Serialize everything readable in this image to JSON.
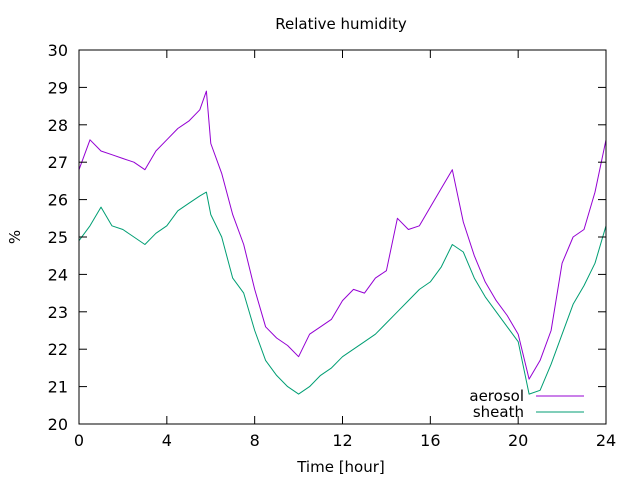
{
  "chart_data": {
    "type": "line",
    "title": "Relative humidity",
    "xlabel": "Time [hour]",
    "ylabel": "%",
    "xlim": [
      0,
      24
    ],
    "ylim": [
      20,
      30
    ],
    "xticks": [
      0,
      4,
      8,
      12,
      16,
      20,
      24
    ],
    "yticks": [
      20,
      21,
      22,
      23,
      24,
      25,
      26,
      27,
      28,
      29,
      30
    ],
    "grid": false,
    "legend_position": "bottom-right",
    "series": [
      {
        "name": "aerosol",
        "color": "#9400d3",
        "x": [
          0,
          0.5,
          1,
          1.5,
          2,
          2.5,
          3,
          3.5,
          4,
          4.5,
          5,
          5.5,
          5.8,
          6,
          6.5,
          7,
          7.5,
          8,
          8.5,
          9,
          9.5,
          10,
          10.5,
          11,
          11.5,
          12,
          12.5,
          13,
          13.5,
          14,
          14.5,
          15,
          15.5,
          16,
          16.5,
          17,
          17.5,
          18,
          18.5,
          19,
          19.5,
          20,
          20.5,
          21,
          21.5,
          22,
          22.5,
          23,
          23.5,
          24
        ],
        "y": [
          26.8,
          27.6,
          27.3,
          27.2,
          27.1,
          27.0,
          26.8,
          27.3,
          27.6,
          27.9,
          28.1,
          28.4,
          28.9,
          27.5,
          26.7,
          25.6,
          24.8,
          23.6,
          22.6,
          22.3,
          22.1,
          21.8,
          22.4,
          22.6,
          22.8,
          23.3,
          23.6,
          23.5,
          23.9,
          24.1,
          25.5,
          25.2,
          25.3,
          25.8,
          26.3,
          26.8,
          25.4,
          24.5,
          23.8,
          23.3,
          22.9,
          22.4,
          21.2,
          21.7,
          22.5,
          24.3,
          25.0,
          25.2,
          26.2,
          27.6
        ]
      },
      {
        "name": "sheath",
        "color": "#009e73",
        "x": [
          0,
          0.5,
          1,
          1.5,
          2,
          2.5,
          3,
          3.5,
          4,
          4.5,
          5,
          5.5,
          5.8,
          6,
          6.5,
          7,
          7.5,
          8,
          8.5,
          9,
          9.5,
          10,
          10.5,
          11,
          11.5,
          12,
          12.5,
          13,
          13.5,
          14,
          14.5,
          15,
          15.5,
          16,
          16.5,
          17,
          17.5,
          18,
          18.5,
          19,
          19.5,
          20,
          20.5,
          21,
          21.5,
          22,
          22.5,
          23,
          23.5,
          24
        ],
        "y": [
          24.9,
          25.3,
          25.8,
          25.3,
          25.2,
          25.0,
          24.8,
          25.1,
          25.3,
          25.7,
          25.9,
          26.1,
          26.2,
          25.6,
          25.0,
          23.9,
          23.5,
          22.5,
          21.7,
          21.3,
          21.0,
          20.8,
          21.0,
          21.3,
          21.5,
          21.8,
          22.0,
          22.2,
          22.4,
          22.7,
          23.0,
          23.3,
          23.6,
          23.8,
          24.2,
          24.8,
          24.6,
          23.9,
          23.4,
          23.0,
          22.6,
          22.2,
          20.8,
          20.9,
          21.6,
          22.4,
          23.2,
          23.7,
          24.3,
          25.3
        ]
      }
    ]
  }
}
